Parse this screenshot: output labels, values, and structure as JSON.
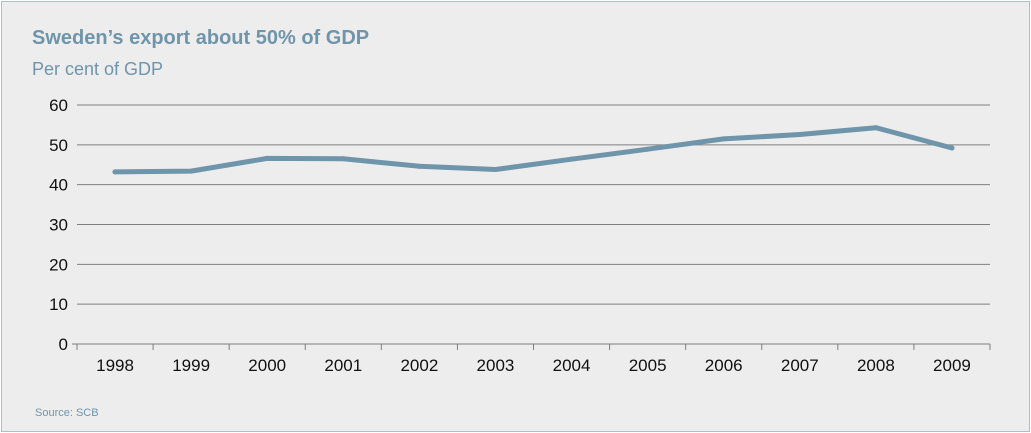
{
  "header": {
    "title": "Sweden’s export about 50% of GDP",
    "subtitle": "Per cent of GDP"
  },
  "footer": {
    "source": "Source: SCB"
  },
  "colors": {
    "line": "#6f95ab",
    "text_accent": "#6f95ab",
    "grid": "#7f7f7f",
    "background": "#ededed"
  },
  "chart_data": {
    "type": "line",
    "categories": [
      "1998",
      "1999",
      "2000",
      "2001",
      "2002",
      "2003",
      "2004",
      "2005",
      "2006",
      "2007",
      "2008",
      "2009"
    ],
    "series": [
      {
        "values": [
          43.2,
          43.4,
          46.6,
          46.5,
          44.6,
          43.8,
          46.4,
          48.9,
          51.5,
          52.6,
          54.3,
          49.2
        ]
      }
    ],
    "ylim": [
      0,
      60
    ],
    "yticks": [
      0,
      10,
      20,
      30,
      40,
      50,
      60
    ],
    "grid": true,
    "legend": "none",
    "title": "Sweden’s export about 50% of GDP",
    "subtitle": "Per cent of GDP",
    "xlabel": "",
    "ylabel": ""
  }
}
